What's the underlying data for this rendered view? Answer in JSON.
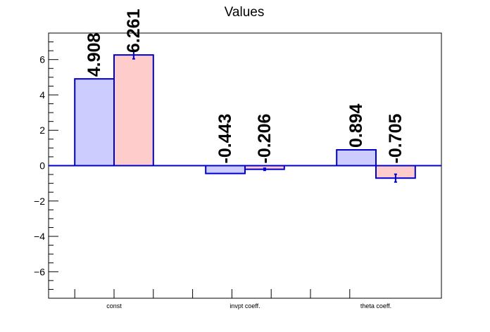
{
  "chart_data": {
    "type": "bar",
    "title": "Values",
    "xlabel": "",
    "ylabel": "",
    "categories": [
      "const",
      "invpt coeff.",
      "theta coeff."
    ],
    "series": [
      {
        "values": [
          4.908,
          -0.443,
          0.894
        ],
        "labels": [
          "4.908",
          "-0.443",
          "0.894"
        ],
        "errors": [
          0,
          0,
          0
        ],
        "color": "#ccccff"
      },
      {
        "values": [
          6.261,
          -0.206,
          -0.705
        ],
        "labels": [
          "6.261",
          "-0.206",
          "-0.705"
        ],
        "errors": [
          0.22,
          0.06,
          0.22
        ],
        "color": "#ffcccc"
      }
    ],
    "edge_color": "#0000cc",
    "ylim": [
      -7.5,
      7.5
    ],
    "yticks": [
      -6,
      -4,
      -2,
      0,
      2,
      4,
      6
    ],
    "ytick_labels": [
      "−6",
      "−4",
      "−2",
      "0",
      "2",
      "4",
      "6"
    ],
    "grid": false,
    "legend": "none"
  }
}
